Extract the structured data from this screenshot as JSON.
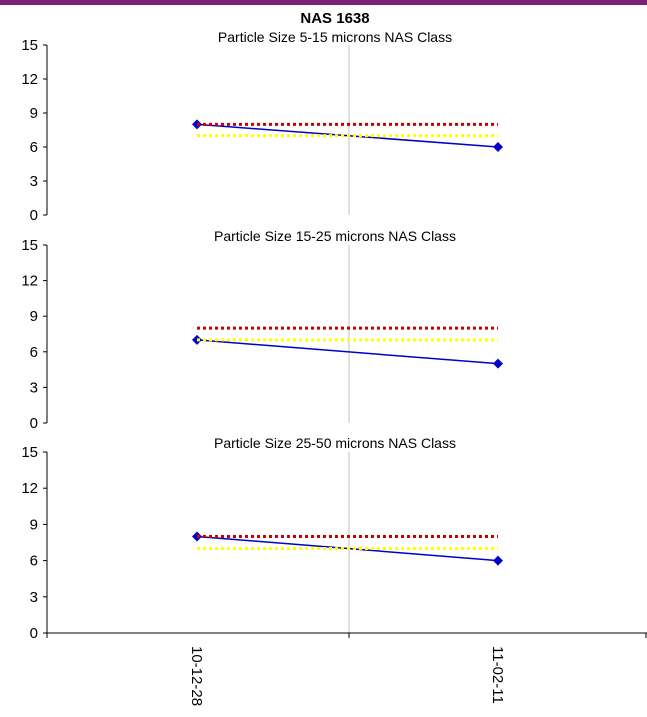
{
  "chart_data": {
    "type": "line",
    "title": "NAS 1638",
    "categories": [
      "10-12-28",
      "11-02-11"
    ],
    "panels": [
      {
        "title": "Particle Size 5-15 microns NAS Class",
        "ylim": [
          0,
          15
        ],
        "yticks": [
          0,
          3,
          6,
          9,
          12,
          15
        ],
        "series": [
          {
            "values": [
              8,
              6
            ],
            "color": "#0000cc",
            "style": "solid",
            "markers": true
          },
          {
            "values": [
              8,
              8
            ],
            "color": "#cc0000",
            "style": "dotted"
          },
          {
            "values": [
              7,
              7
            ],
            "color": "#ffff00",
            "style": "dotted"
          }
        ]
      },
      {
        "title": "Particle Size 15-25 microns NAS Class",
        "ylim": [
          0,
          15
        ],
        "yticks": [
          0,
          3,
          6,
          9,
          12,
          15
        ],
        "series": [
          {
            "values": [
              7,
              5
            ],
            "color": "#0000cc",
            "style": "solid",
            "markers": true
          },
          {
            "values": [
              8,
              8
            ],
            "color": "#cc0000",
            "style": "dotted"
          },
          {
            "values": [
              7,
              7
            ],
            "color": "#ffff00",
            "style": "dotted"
          }
        ]
      },
      {
        "title": "Particle Size 25-50 microns NAS Class",
        "ylim": [
          0,
          15
        ],
        "yticks": [
          0,
          3,
          6,
          9,
          12,
          15
        ],
        "series": [
          {
            "values": [
              8,
              6
            ],
            "color": "#0000cc",
            "style": "solid",
            "markers": true
          },
          {
            "values": [
              8,
              8
            ],
            "color": "#cc0000",
            "style": "dotted"
          },
          {
            "values": [
              7,
              7
            ],
            "color": "#ffff00",
            "style": "dotted"
          }
        ]
      }
    ],
    "grid": {
      "vertical": true,
      "horizontal": false
    }
  },
  "colors": {
    "top_bar": "#7b1f7b",
    "grid": "#c0c0c0",
    "axis": "#000000"
  }
}
